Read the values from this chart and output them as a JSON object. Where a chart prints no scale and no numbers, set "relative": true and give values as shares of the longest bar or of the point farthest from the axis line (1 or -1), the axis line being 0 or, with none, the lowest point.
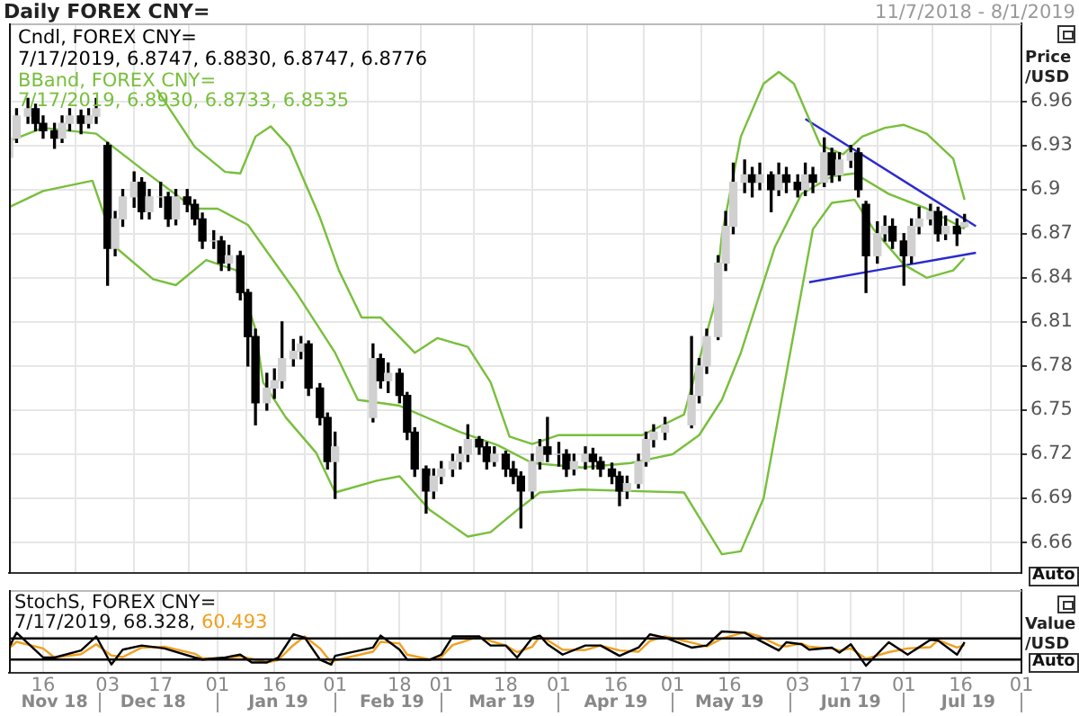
{
  "chart_data": [
    {
      "type": "candlestick",
      "title": "Daily FOREX CNY=",
      "ylabel": "Price /USD",
      "annotations": [
        "Cndl, FOREX CNY=",
        "7/17/2019, 6.8747, 6.8830, 6.8747, 6.8776",
        "BBand, FOREX CNY=",
        "7/17/2019, 6.8930, 6.8733, 6.8535",
        "11/7/2018 - 8/1/2019",
        "Auto"
      ],
      "color": "#000000",
      "colors": [
        "#d0d0d0",
        "#d0d0d0",
        "#d0d0d0",
        "#000000",
        "#000000",
        "#000000",
        "#d0d0d0",
        "#d0d0d0",
        "#000000",
        "#d0d0d0",
        "#d0d0d0",
        "#000000",
        "#d0d0d0",
        "#d0d0d0",
        "#d0d0d0",
        "#000000",
        "#d0d0d0",
        "#d0d0d0",
        "#000000",
        "#d0d0d0",
        "#000000",
        "#000000",
        "#000000",
        "#d0d0d0",
        "#000000",
        "#d0d0d0",
        "#000000",
        "#000000",
        "#000000",
        "#d0d0d0",
        "#d0d0d0",
        "#d0d0d0",
        "#d0d0d0",
        "#d0d0d0",
        "#000000",
        "#000000",
        "#000000",
        "#d0d0d0",
        "#d0d0d0",
        "#000000",
        "#d0d0d0",
        "#000000",
        "#000000",
        "#000000",
        "#000000",
        "#d0d0d0",
        "#d0d0d0",
        "#d0d0d0",
        "#d0d0d0",
        "#d0d0d0",
        "#000000",
        "#000000",
        "#d0d0d0",
        "#000000",
        "#000000",
        "#000000",
        "#d0d0d0",
        "#d0d0d0",
        "#000000",
        "#d0d0d0",
        "#000000",
        "#d0d0d0",
        "#d0d0d0",
        "#000000",
        "#000000",
        "#000000",
        "#000000",
        "#d0d0d0",
        "#d0d0d0",
        "#d0d0d0",
        "#d0d0d0",
        "#d0d0d0",
        "#d0d0d0",
        "#d0d0d0",
        "#d0d0d0",
        "#d0d0d0",
        "#d0d0d0",
        "#d0d0d0",
        "#d0d0d0",
        "#000000",
        "#d0d0d0",
        "#000000",
        "#d0d0d0",
        "#000000",
        "#000000",
        "#d0d0d0",
        "#000000",
        "#d0d0d0",
        "#000000",
        "#d0d0d0",
        "#d0d0d0",
        "#000000",
        "#000000",
        "#d0d0d0",
        "#d0d0d0",
        "#000000",
        "#000000",
        "#d0d0d0",
        "#d0d0d0",
        "#d0d0d0",
        "#000000",
        "#d0d0d0",
        "#000000",
        "#d0d0d0"
      ],
      "x": [
        "2018-11-07",
        "2018-11-09",
        "2018-11-12",
        "2018-11-14",
        "2018-11-16",
        "2018-11-19",
        "2018-11-21",
        "2018-11-23",
        "2018-11-26",
        "2018-11-28",
        "2018-11-30",
        "2018-12-03",
        "2018-12-05",
        "2018-12-07",
        "2018-12-10",
        "2018-12-12",
        "2018-12-14",
        "2018-12-17",
        "2018-12-19",
        "2018-12-21",
        "2018-12-24",
        "2018-12-26",
        "2018-12-28",
        "2018-12-31",
        "2019-01-02",
        "2019-01-04",
        "2019-01-07",
        "2019-01-09",
        "2019-01-11",
        "2019-01-14",
        "2019-01-16",
        "2019-01-18",
        "2019-01-21",
        "2019-01-23",
        "2019-01-25",
        "2019-01-28",
        "2019-01-30",
        "2019-02-01",
        "2019-02-11",
        "2019-02-13",
        "2019-02-15",
        "2019-02-18",
        "2019-02-20",
        "2019-02-22",
        "2019-02-25",
        "2019-02-27",
        "2019-03-01",
        "2019-03-04",
        "2019-03-06",
        "2019-03-08",
        "2019-03-11",
        "2019-03-13",
        "2019-03-15",
        "2019-03-18",
        "2019-03-20",
        "2019-03-22",
        "2019-03-25",
        "2019-03-27",
        "2019-03-29",
        "2019-04-01",
        "2019-04-03",
        "2019-04-05",
        "2019-04-08",
        "2019-04-10",
        "2019-04-12",
        "2019-04-15",
        "2019-04-17",
        "2019-04-19",
        "2019-04-22",
        "2019-04-24",
        "2019-04-26",
        "2019-04-29",
        "2019-05-06",
        "2019-05-08",
        "2019-05-10",
        "2019-05-13",
        "2019-05-15",
        "2019-05-17",
        "2019-05-20",
        "2019-05-22",
        "2019-05-24",
        "2019-05-27",
        "2019-05-29",
        "2019-05-31",
        "2019-06-03",
        "2019-06-05",
        "2019-06-07",
        "2019-06-10",
        "2019-06-12",
        "2019-06-14",
        "2019-06-17",
        "2019-06-19",
        "2019-06-21",
        "2019-06-24",
        "2019-06-26",
        "2019-06-28",
        "2019-07-01",
        "2019-07-03",
        "2019-07-05",
        "2019-07-08",
        "2019-07-10",
        "2019-07-12",
        "2019-07-15",
        "2019-07-17"
      ],
      "ohlc": [
        [
          6.922,
          6.938,
          6.918,
          6.935
        ],
        [
          6.935,
          6.955,
          6.932,
          6.95
        ],
        [
          6.95,
          6.962,
          6.945,
          6.955
        ],
        [
          6.955,
          6.958,
          6.94,
          6.945
        ],
        [
          6.945,
          6.95,
          6.935,
          6.94
        ],
        [
          6.94,
          6.945,
          6.928,
          6.935
        ],
        [
          6.935,
          6.95,
          6.932,
          6.945
        ],
        [
          6.945,
          6.955,
          6.94,
          6.95
        ],
        [
          6.95,
          6.954,
          6.938,
          6.945
        ],
        [
          6.945,
          6.955,
          6.942,
          6.95
        ],
        [
          6.95,
          6.962,
          6.945,
          6.955
        ],
        [
          6.93,
          6.932,
          6.835,
          6.86
        ],
        [
          6.86,
          6.885,
          6.855,
          6.88
        ],
        [
          6.88,
          6.9,
          6.875,
          6.895
        ],
        [
          6.895,
          6.912,
          6.888,
          6.905
        ],
        [
          6.905,
          6.908,
          6.88,
          6.885
        ],
        [
          6.885,
          6.9,
          6.88,
          6.895
        ],
        [
          6.895,
          6.905,
          6.888,
          6.895
        ],
        [
          6.895,
          6.898,
          6.875,
          6.88
        ],
        [
          6.88,
          6.9,
          6.876,
          6.895
        ],
        [
          6.895,
          6.9,
          6.885,
          6.89
        ],
        [
          6.89,
          6.893,
          6.876,
          6.88
        ],
        [
          6.88,
          6.884,
          6.86,
          6.865
        ],
        [
          6.865,
          6.872,
          6.86,
          6.865
        ],
        [
          6.865,
          6.868,
          6.845,
          6.85
        ],
        [
          6.85,
          6.862,
          6.845,
          6.855
        ],
        [
          6.855,
          6.858,
          6.825,
          6.83
        ],
        [
          6.83,
          6.832,
          6.78,
          6.8
        ],
        [
          6.8,
          6.805,
          6.74,
          6.755
        ],
        [
          6.755,
          6.775,
          6.75,
          6.765
        ],
        [
          6.765,
          6.778,
          6.758,
          6.77
        ],
        [
          6.77,
          6.81,
          6.765,
          6.785
        ],
        [
          6.785,
          6.798,
          6.78,
          6.79
        ],
        [
          6.79,
          6.8,
          6.785,
          6.795
        ],
        [
          6.795,
          6.797,
          6.76,
          6.765
        ],
        [
          6.765,
          6.768,
          6.74,
          6.745
        ],
        [
          6.745,
          6.748,
          6.71,
          6.715
        ],
        [
          6.715,
          6.735,
          6.69,
          6.725
        ],
        [
          6.745,
          6.795,
          6.742,
          6.785
        ],
        [
          6.785,
          6.788,
          6.765,
          6.77
        ],
        [
          6.77,
          6.782,
          6.762,
          6.775
        ],
        [
          6.775,
          6.778,
          6.755,
          6.76
        ],
        [
          6.76,
          6.762,
          6.73,
          6.735
        ],
        [
          6.735,
          6.738,
          6.705,
          6.71
        ],
        [
          6.71,
          6.712,
          6.68,
          6.695
        ],
        [
          6.695,
          6.71,
          6.69,
          6.705
        ],
        [
          6.705,
          6.715,
          6.7,
          6.71
        ],
        [
          6.71,
          6.72,
          6.705,
          6.715
        ],
        [
          6.715,
          6.725,
          6.71,
          6.72
        ],
        [
          6.72,
          6.74,
          6.715,
          6.73
        ],
        [
          6.73,
          6.732,
          6.72,
          6.725
        ],
        [
          6.725,
          6.728,
          6.71,
          6.715
        ],
        [
          6.715,
          6.725,
          6.712,
          6.72
        ],
        [
          6.72,
          6.722,
          6.705,
          6.71
        ],
        [
          6.71,
          6.715,
          6.7,
          6.705
        ],
        [
          6.705,
          6.708,
          6.67,
          6.695
        ],
        [
          6.695,
          6.72,
          6.69,
          6.715
        ],
        [
          6.715,
          6.73,
          6.71,
          6.725
        ],
        [
          6.725,
          6.745,
          6.715,
          6.72
        ],
        [
          6.72,
          6.728,
          6.712,
          6.72
        ],
        [
          6.72,
          6.723,
          6.705,
          6.71
        ],
        [
          6.71,
          6.72,
          6.706,
          6.715
        ],
        [
          6.715,
          6.725,
          6.71,
          6.72
        ],
        [
          6.72,
          6.724,
          6.71,
          6.715
        ],
        [
          6.715,
          6.718,
          6.705,
          6.71
        ],
        [
          6.71,
          6.714,
          6.7,
          6.705
        ],
        [
          6.705,
          6.708,
          6.685,
          6.695
        ],
        [
          6.695,
          6.705,
          6.69,
          6.7
        ],
        [
          6.7,
          6.72,
          6.697,
          6.715
        ],
        [
          6.715,
          6.735,
          6.712,
          6.73
        ],
        [
          6.73,
          6.74,
          6.725,
          6.735
        ],
        [
          6.735,
          6.745,
          6.73,
          6.74
        ],
        [
          6.74,
          6.8,
          6.738,
          6.76
        ],
        [
          6.76,
          6.785,
          6.755,
          6.78
        ],
        [
          6.78,
          6.805,
          6.775,
          6.8
        ],
        [
          6.8,
          6.855,
          6.798,
          6.85
        ],
        [
          6.85,
          6.885,
          6.845,
          6.875
        ],
        [
          6.875,
          6.918,
          6.87,
          6.905
        ],
        [
          6.905,
          6.92,
          6.898,
          6.91
        ],
        [
          6.91,
          6.915,
          6.895,
          6.905
        ],
        [
          6.905,
          6.918,
          6.9,
          6.91
        ],
        [
          6.91,
          6.912,
          6.885,
          6.9
        ],
        [
          6.9,
          6.918,
          6.896,
          6.91
        ],
        [
          6.91,
          6.915,
          6.898,
          6.905
        ],
        [
          6.905,
          6.91,
          6.895,
          6.9
        ],
        [
          6.9,
          6.918,
          6.896,
          6.91
        ],
        [
          6.91,
          6.915,
          6.898,
          6.905
        ],
        [
          6.905,
          6.935,
          6.902,
          6.925
        ],
        [
          6.925,
          6.928,
          6.905,
          6.91
        ],
        [
          6.91,
          6.925,
          6.906,
          6.92
        ],
        [
          6.92,
          6.93,
          6.915,
          6.925
        ],
        [
          6.925,
          6.928,
          6.895,
          6.9
        ],
        [
          6.89,
          6.892,
          6.83,
          6.855
        ],
        [
          6.855,
          6.878,
          6.85,
          6.87
        ],
        [
          6.87,
          6.882,
          6.865,
          6.875
        ],
        [
          6.875,
          6.88,
          6.86,
          6.865
        ],
        [
          6.865,
          6.87,
          6.835,
          6.855
        ],
        [
          6.855,
          6.88,
          6.85,
          6.875
        ],
        [
          6.875,
          6.888,
          6.87,
          6.88
        ],
        [
          6.88,
          6.89,
          6.876,
          6.885
        ],
        [
          6.885,
          6.888,
          6.865,
          6.87
        ],
        [
          6.87,
          6.882,
          6.866,
          6.875
        ],
        [
          6.875,
          6.88,
          6.862,
          6.87
        ],
        [
          6.8747,
          6.883,
          6.8747,
          6.8776
        ]
      ],
      "series": [
        {
          "type": "line",
          "color": "#78bf3c",
          "x": [
            "2018-12-16",
            "2018-12-26",
            "2019-01-03",
            "2019-01-07",
            "2019-01-11",
            "2019-01-15",
            "2019-01-20",
            "2019-01-28",
            "2019-02-02",
            "2019-02-08",
            "2019-02-13",
            "2019-02-22",
            "2019-02-28",
            "2019-03-08",
            "2019-03-14",
            "2019-03-19",
            "2019-03-25",
            "2019-04-01",
            "2019-04-15",
            "2019-04-23",
            "2019-05-04",
            "2019-05-12",
            "2019-05-14",
            "2019-05-19",
            "2019-05-25",
            "2019-05-29",
            "2019-06-02",
            "2019-06-06",
            "2019-06-09",
            "2019-06-15",
            "2019-06-20",
            "2019-06-26",
            "2019-07-01",
            "2019-07-07",
            "2019-07-14",
            "2019-07-17"
          ],
          "values": [
            6.968,
            6.929,
            6.912,
            6.911,
            6.936,
            6.943,
            6.929,
            6.881,
            6.845,
            6.813,
            6.813,
            6.789,
            6.799,
            6.793,
            6.769,
            6.732,
            6.727,
            6.733,
            6.733,
            6.733,
            6.747,
            6.821,
            6.869,
            6.936,
            6.972,
            6.98,
            6.972,
            6.948,
            6.93,
            6.924,
            6.936,
            6.942,
            6.944,
            6.938,
            6.921,
            6.893
          ]
        },
        {
          "type": "line",
          "color": "#78bf3c",
          "x": [
            "2018-11-07",
            "2018-11-16",
            "2018-11-30",
            "2018-12-13",
            "2018-12-26",
            "2019-01-01",
            "2019-01-09",
            "2019-01-22",
            "2019-02-01",
            "2019-02-07",
            "2019-02-18",
            "2019-02-26",
            "2019-03-06",
            "2019-03-16",
            "2019-03-25",
            "2019-04-07",
            "2019-04-20",
            "2019-05-01",
            "2019-05-08",
            "2019-05-14",
            "2019-05-19",
            "2019-05-28",
            "2019-06-04",
            "2019-06-12",
            "2019-06-18",
            "2019-06-27",
            "2019-07-07",
            "2019-07-17"
          ],
          "values": [
            6.933,
            6.942,
            6.938,
            6.912,
            6.887,
            6.887,
            6.876,
            6.829,
            6.789,
            6.757,
            6.753,
            6.744,
            6.735,
            6.726,
            6.714,
            6.711,
            6.714,
            6.72,
            6.733,
            6.757,
            6.789,
            6.861,
            6.897,
            6.909,
            6.911,
            6.897,
            6.887,
            6.8733
          ]
        },
        {
          "type": "line",
          "color": "#78bf3c",
          "x": [
            "2018-11-07",
            "2018-11-16",
            "2018-11-29",
            "2018-12-05",
            "2018-12-15",
            "2018-12-21",
            "2018-12-29",
            "2019-01-06",
            "2019-01-11",
            "2019-01-13",
            "2019-01-19",
            "2019-01-27",
            "2019-02-01",
            "2019-02-12",
            "2019-02-18",
            "2019-02-26",
            "2019-03-08",
            "2019-03-14",
            "2019-03-21",
            "2019-03-27",
            "2019-04-07",
            "2019-04-20",
            "2019-05-04",
            "2019-05-09",
            "2019-05-14",
            "2019-05-19",
            "2019-05-25",
            "2019-06-01",
            "2019-06-07",
            "2019-06-12",
            "2019-06-18",
            "2019-06-23",
            "2019-07-01",
            "2019-07-07",
            "2019-07-14",
            "2019-07-17"
          ],
          "values": [
            6.888,
            6.899,
            6.906,
            6.861,
            6.839,
            6.835,
            6.852,
            6.845,
            6.805,
            6.769,
            6.745,
            6.721,
            6.694,
            6.702,
            6.705,
            6.682,
            6.664,
            6.667,
            6.682,
            6.694,
            6.696,
            6.695,
            6.694,
            6.673,
            6.652,
            6.654,
            6.69,
            6.789,
            6.873,
            6.891,
            6.893,
            6.873,
            6.849,
            6.84,
            6.845,
            6.8535
          ]
        },
        {
          "type": "line",
          "color": "#2b2bcc",
          "x": [
            "2019-06-05",
            "2019-07-20"
          ],
          "values": [
            6.948,
            6.875
          ]
        },
        {
          "type": "line",
          "color": "#2b2bcc",
          "x": [
            "2019-06-06",
            "2019-07-20"
          ],
          "values": [
            6.837,
            6.857
          ]
        }
      ],
      "xlim": [
        "2018-11-07",
        "2019-08-01"
      ],
      "xticks": [
        "2018-11-16",
        "2018-12-03",
        "2018-12-17",
        "2019-01-01",
        "2019-01-16",
        "2019-02-01",
        "2019-02-18",
        "2019-03-01",
        "2019-03-18",
        "2019-04-01",
        "2019-04-16",
        "2019-05-01",
        "2019-05-16",
        "2019-06-03",
        "2019-06-17",
        "2019-07-01",
        "2019-07-16",
        "2019-08-01"
      ],
      "ylim": [
        6.639,
        7.013
      ],
      "yticks": [
        6.66,
        6.69,
        6.72,
        6.75,
        6.78,
        6.81,
        6.84,
        6.87,
        6.9,
        6.93,
        6.96
      ],
      "grid": true,
      "tick_labels": "y",
      "marker": "none"
    },
    {
      "type": "line",
      "ylabel": "Value /USD",
      "relative": true,
      "annotations": [
        "StochS, FOREX CNY=",
        "7/17/2019, 68.328,",
        "60.493",
        "Auto"
      ],
      "x": [
        "2018-11-07",
        "2018-11-09",
        "2018-11-16",
        "2018-11-19",
        "2018-11-26",
        "2018-11-30",
        "2018-12-04",
        "2018-12-07",
        "2018-12-12",
        "2018-12-18",
        "2018-12-26",
        "2018-12-28",
        "2019-01-03",
        "2019-01-07",
        "2019-01-10",
        "2019-01-14",
        "2019-01-17",
        "2019-01-21",
        "2019-01-24",
        "2019-01-28",
        "2019-01-31",
        "2019-02-01",
        "2019-02-11",
        "2019-02-13",
        "2019-02-18",
        "2019-02-20",
        "2019-02-26",
        "2019-03-01",
        "2019-03-04",
        "2019-03-11",
        "2019-03-14",
        "2019-03-18",
        "2019-03-21",
        "2019-03-25",
        "2019-03-27",
        "2019-03-29",
        "2019-04-02",
        "2019-04-08",
        "2019-04-12",
        "2019-04-17",
        "2019-04-22",
        "2019-04-25",
        "2019-04-29",
        "2019-05-06",
        "2019-05-10",
        "2019-05-14",
        "2019-05-20",
        "2019-05-24",
        "2019-05-29",
        "2019-05-31",
        "2019-06-04",
        "2019-06-06",
        "2019-06-12",
        "2019-06-14",
        "2019-06-17",
        "2019-06-21",
        "2019-06-27",
        "2019-07-02",
        "2019-07-08",
        "2019-07-10",
        "2019-07-15",
        "2019-07-17"
      ],
      "series": [
        {
          "color": "#000000",
          "values": [
            0.61,
            0.97,
            0.37,
            0.37,
            0.54,
            0.88,
            0.2,
            0.56,
            0.66,
            0.59,
            0.37,
            0.32,
            0.37,
            0.44,
            0.25,
            0.25,
            0.37,
            0.93,
            0.85,
            0.32,
            0.2,
            0.41,
            0.61,
            0.9,
            0.56,
            0.32,
            0.32,
            0.44,
            0.88,
            0.88,
            0.66,
            0.66,
            0.37,
            0.85,
            0.9,
            0.69,
            0.44,
            0.66,
            0.66,
            0.41,
            0.61,
            0.93,
            0.85,
            0.61,
            0.66,
            1,
            0.97,
            0.78,
            0.54,
            0.74,
            0.69,
            0.56,
            0.61,
            0.49,
            0.69,
            0.17,
            0.74,
            0.44,
            0.8,
            0.78,
            0.44,
            0.74
          ]
        },
        {
          "color": "#f0a020",
          "values": [
            0.59,
            0.75,
            0.59,
            0.37,
            0.45,
            0.69,
            0.42,
            0.38,
            0.61,
            0.63,
            0.46,
            0.35,
            0.35,
            0.4,
            0.34,
            0.25,
            0.31,
            0.67,
            0.88,
            0.59,
            0.25,
            0.3,
            0.51,
            0.75,
            0.71,
            0.44,
            0.32,
            0.38,
            0.67,
            0.88,
            0.77,
            0.66,
            0.5,
            0.63,
            0.88,
            0.79,
            0.56,
            0.55,
            0.66,
            0.54,
            0.51,
            0.77,
            0.88,
            0.73,
            0.64,
            0.83,
            0.98,
            0.88,
            0.66,
            0.64,
            0.71,
            0.63,
            0.59,
            0.54,
            0.59,
            0.34,
            0.5,
            0.59,
            0.62,
            0.79,
            0.61,
            0.67
          ]
        }
      ],
      "ref_lines": [
        {
          "axis": "y",
          "value": 0.83,
          "color": "#000000"
        },
        {
          "axis": "y",
          "value": 0.32,
          "color": "#000000"
        }
      ],
      "xlim": [
        "2018-11-07",
        "2019-08-01"
      ],
      "xticks": [
        {
          "value": "2018-11-16",
          "label": "16"
        },
        {
          "value": "2018-12-03",
          "label": "03"
        },
        {
          "value": "2018-12-17",
          "label": "17"
        },
        {
          "value": "2019-01-01",
          "label": "01"
        },
        {
          "value": "2019-01-16",
          "label": "16"
        },
        {
          "value": "2019-02-01",
          "label": "01"
        },
        {
          "value": "2019-02-18",
          "label": "18"
        },
        {
          "value": "2019-03-01",
          "label": "01"
        },
        {
          "value": "2019-03-18",
          "label": "18"
        },
        {
          "value": "2019-04-01",
          "label": "01"
        },
        {
          "value": "2019-04-16",
          "label": "16"
        },
        {
          "value": "2019-05-01",
          "label": "01"
        },
        {
          "value": "2019-05-16",
          "label": "16"
        },
        {
          "value": "2019-06-03",
          "label": "03"
        },
        {
          "value": "2019-06-17",
          "label": "17"
        },
        {
          "value": "2019-07-01",
          "label": "01"
        },
        {
          "value": "2019-07-16",
          "label": "16"
        },
        {
          "value": "2019-08-01",
          "label": "01"
        }
      ],
      "x2lim": [
        "2018-11-07",
        "2019-08-01"
      ],
      "x2ticks": [
        {
          "value": "2018-11-19",
          "label": "Nov 18"
        },
        {
          "value": "2018-12-01",
          "label": null
        },
        {
          "value": "2018-12-15",
          "label": "Dec 18"
        },
        {
          "value": "2019-01-01",
          "label": null
        },
        {
          "value": "2019-01-17",
          "label": "Jan 19"
        },
        {
          "value": "2019-02-01",
          "label": null
        },
        {
          "value": "2019-02-16",
          "label": "Feb 19"
        },
        {
          "value": "2019-03-01",
          "label": null
        },
        {
          "value": "2019-03-17",
          "label": "Mar 19"
        },
        {
          "value": "2019-04-01",
          "label": null
        },
        {
          "value": "2019-04-16",
          "label": "Apr 19"
        },
        {
          "value": "2019-05-01",
          "label": null
        },
        {
          "value": "2019-05-16",
          "label": "May 19"
        },
        {
          "value": "2019-06-01",
          "label": null
        },
        {
          "value": "2019-06-17",
          "label": "Jun 19"
        },
        {
          "value": "2019-07-01",
          "label": null
        },
        {
          "value": "2019-07-18",
          "label": "Jul 19"
        },
        {
          "value": "2019-08-01",
          "label": null
        }
      ],
      "grid": "x",
      "tick_labels": "x",
      "marker": "none"
    }
  ]
}
